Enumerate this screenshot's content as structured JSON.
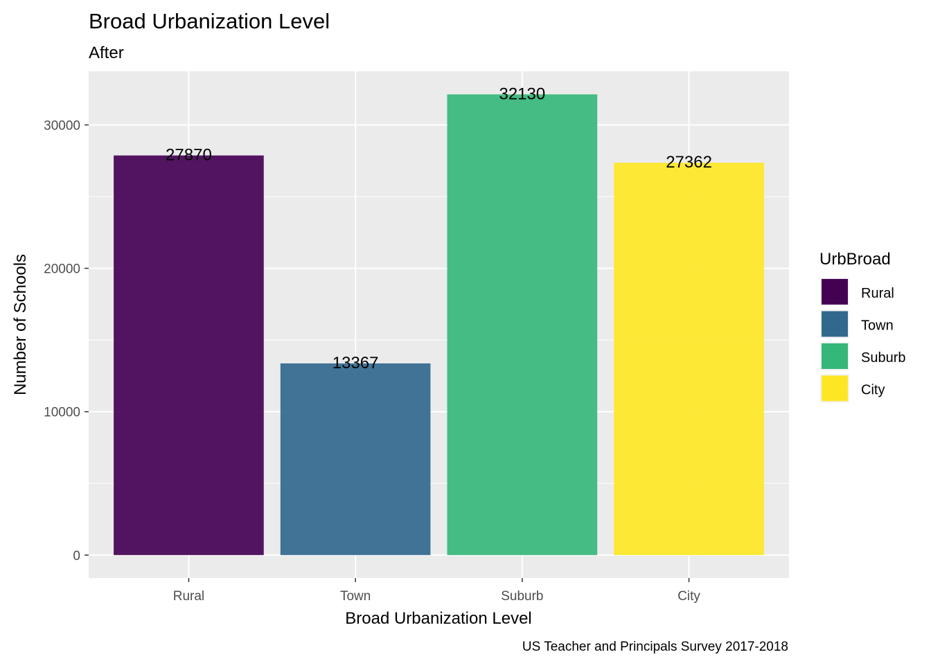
{
  "chart_data": {
    "type": "bar",
    "title": "Broad Urbanization Level",
    "subtitle": "After",
    "xlabel": "Broad Urbanization Level",
    "ylabel": "Number of Schools",
    "caption": "US Teacher and Principals Survey 2017-2018",
    "categories": [
      "Rural",
      "Town",
      "Suburb",
      "City"
    ],
    "values": [
      27870,
      13367,
      32130,
      27362
    ],
    "data_labels": [
      "27870",
      "13367",
      "32130",
      "27362"
    ],
    "colors": [
      "#440154",
      "#31688E",
      "#35B779",
      "#FDE725"
    ],
    "ylim": [
      -1600,
      33740
    ],
    "y_ticks": [
      0,
      10000,
      20000,
      30000
    ],
    "y_tick_labels": [
      "0",
      "10000",
      "20000",
      "30000"
    ],
    "y_minor_ticks": [
      5000,
      15000,
      25000
    ],
    "grid": true,
    "legend": {
      "title": "UrbBroad",
      "position": "right",
      "items": [
        "Rural",
        "Town",
        "Suburb",
        "City"
      ]
    }
  }
}
